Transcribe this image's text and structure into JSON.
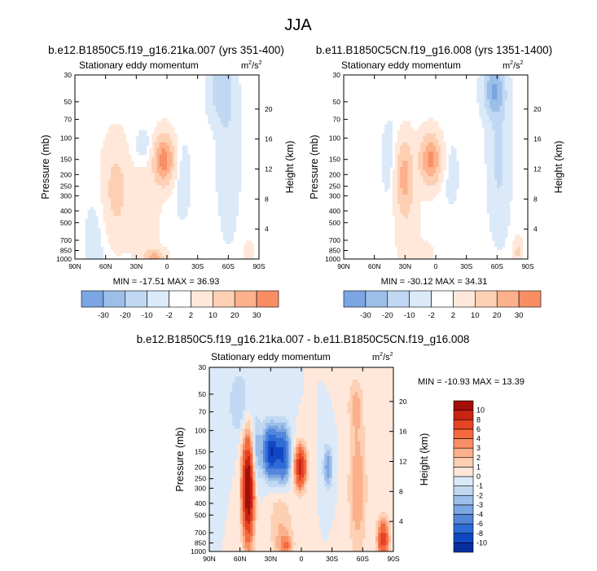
{
  "title": "JJA",
  "panels": [
    {
      "title": "b.e12.B1850C5.f19_g16.21ka.007 (yrs 351-400)",
      "subtitle_left": "Stationary eddy momentum",
      "units_base": "m",
      "units_exp1": "2",
      "units_mid": "/s",
      "units_exp2": "2",
      "stats": "MIN = -17.51  MAX = 36.93"
    },
    {
      "title": "b.e11.B1850C5CN.f19_g16.008 (yrs 1351-1400)",
      "subtitle_left": "Stationary eddy momentum",
      "units_base": "m",
      "units_exp1": "2",
      "units_mid": "/s",
      "units_exp2": "2",
      "stats": "MIN = -30.12  MAX = 34.31"
    },
    {
      "title": "b.e12.B1850C5.f19_g16.21ka.007 - b.e11.B1850C5CN.f19_g16.008",
      "subtitle_left": "Stationary eddy momentum",
      "units_base": "m",
      "units_exp1": "2",
      "units_mid": "/s",
      "units_exp2": "2",
      "stats": "MIN = -10.93  MAX = 13.39"
    }
  ],
  "colors": {
    "pos": [
      "#ffe8da",
      "#fdd0b3",
      "#fcb08b",
      "#f98e64",
      "#f4693f",
      "#e44324",
      "#c92312",
      "#a30d0a",
      "#7d0506"
    ],
    "neg": [
      "#dbe9f8",
      "#c0d8f2",
      "#9cbfea",
      "#7ba5e3",
      "#5487dc",
      "#2e6bd6",
      "#1048c4",
      "#0a2ea0",
      "#051a78"
    ]
  },
  "chart_data": [
    {
      "type": "heatmap",
      "title": "b.e12.B1850C5.f19_g16.21ka.007 (yrs 351-400)",
      "variable": "Stationary eddy momentum",
      "units": "m2/s2",
      "xlabel": "",
      "ylabel": "Pressure (mb)",
      "ylabel_right": "Height (km)",
      "x_ticks": [
        "90N",
        "60N",
        "30N",
        "0",
        "30S",
        "60S",
        "90S"
      ],
      "x_range": [
        90,
        -90
      ],
      "y_ticks": [
        "30",
        "50",
        "70",
        "100",
        "150",
        "200",
        "250",
        "300",
        "400",
        "500",
        "700",
        "850",
        "1000"
      ],
      "y_range_mb": [
        30,
        1000
      ],
      "y_right_ticks": [
        "4",
        "8",
        "12",
        "16",
        "20"
      ],
      "levels": [
        -30,
        -20,
        -10,
        -2,
        2,
        10,
        20,
        30
      ],
      "level_labels": [
        "-30",
        "-20",
        "-10",
        "-2",
        "2",
        "10",
        "20",
        "30"
      ],
      "min": -17.51,
      "max": 36.93,
      "features": [
        {
          "lat": 3,
          "p": 150,
          "value": 36,
          "lat_width": 7,
          "logp_width": 0.14
        },
        {
          "lat": 50,
          "p": 270,
          "value": 14,
          "lat_width": 9,
          "logp_width": 0.28
        },
        {
          "lat": 22,
          "p": 400,
          "value": 8,
          "lat_width": 9,
          "logp_width": 0.3
        },
        {
          "lat": 12,
          "p": 980,
          "value": 22,
          "lat_width": 7,
          "logp_width": 0.05
        },
        {
          "lat": -53,
          "p": 40,
          "value": -17,
          "lat_width": 8,
          "logp_width": 0.18
        },
        {
          "lat": -60,
          "p": 150,
          "value": -9,
          "lat_width": 7,
          "logp_width": 0.4
        },
        {
          "lat": 22,
          "p": 120,
          "value": -6,
          "lat_width": 8,
          "logp_width": 0.12
        },
        {
          "lat": -15,
          "p": 220,
          "value": -5,
          "lat_width": 6,
          "logp_width": 0.25
        },
        {
          "lat": 70,
          "p": 700,
          "value": -4,
          "lat_width": 9,
          "logp_width": 0.3
        },
        {
          "lat": -80,
          "p": 900,
          "value": 6,
          "lat_width": 4,
          "logp_width": 0.08
        }
      ]
    },
    {
      "type": "heatmap",
      "title": "b.e11.B1850C5CN.f19_g16.008 (yrs 1351-1400)",
      "variable": "Stationary eddy momentum",
      "units": "m2/s2",
      "xlabel": "",
      "ylabel": "Pressure (mb)",
      "ylabel_right": "Height (km)",
      "x_ticks": [
        "90N",
        "60N",
        "30N",
        "0",
        "30S",
        "60S",
        "90S"
      ],
      "x_range": [
        90,
        -90
      ],
      "y_ticks": [
        "30",
        "50",
        "70",
        "100",
        "150",
        "200",
        "250",
        "300",
        "400",
        "500",
        "700",
        "850",
        "1000"
      ],
      "y_range_mb": [
        30,
        1000
      ],
      "y_right_ticks": [
        "4",
        "8",
        "12",
        "16",
        "20"
      ],
      "levels": [
        -30,
        -20,
        -10,
        -2,
        2,
        10,
        20,
        30
      ],
      "level_labels": [
        "-30",
        "-20",
        "-10",
        "-2",
        "2",
        "10",
        "20",
        "30"
      ],
      "min": -30.12,
      "max": 34.31,
      "features": [
        {
          "lat": 5,
          "p": 150,
          "value": 34,
          "lat_width": 7,
          "logp_width": 0.14
        },
        {
          "lat": 31,
          "p": 200,
          "value": 22,
          "lat_width": 6,
          "logp_width": 0.2
        },
        {
          "lat": 28,
          "p": 450,
          "value": 6,
          "lat_width": 8,
          "logp_width": 0.35
        },
        {
          "lat": -57,
          "p": 40,
          "value": -30,
          "lat_width": 7,
          "logp_width": 0.15
        },
        {
          "lat": -62,
          "p": 150,
          "value": -12,
          "lat_width": 7,
          "logp_width": 0.4
        },
        {
          "lat": 45,
          "p": 150,
          "value": -5,
          "lat_width": 6,
          "logp_width": 0.25
        },
        {
          "lat": -15,
          "p": 200,
          "value": -4,
          "lat_width": 6,
          "logp_width": 0.22
        },
        {
          "lat": -80,
          "p": 880,
          "value": 12,
          "lat_width": 3,
          "logp_width": 0.08
        },
        {
          "lat": 10,
          "p": 920,
          "value": 5,
          "lat_width": 6,
          "logp_width": 0.08
        }
      ]
    },
    {
      "type": "heatmap",
      "title": "b.e12.B1850C5.f19_g16.21ka.007 - b.e11.B1850C5CN.f19_g16.008",
      "variable": "Stationary eddy momentum",
      "units": "m2/s2",
      "xlabel": "",
      "ylabel": "Pressure (mb)",
      "ylabel_right": "Height (km)",
      "x_ticks": [
        "90N",
        "60N",
        "30N",
        "0",
        "30S",
        "60S",
        "90S"
      ],
      "x_range": [
        90,
        -90
      ],
      "y_ticks": [
        "30",
        "50",
        "70",
        "100",
        "150",
        "200",
        "250",
        "300",
        "400",
        "500",
        "700",
        "850",
        "1000"
      ],
      "y_range_mb": [
        30,
        1000
      ],
      "y_right_ticks": [
        "4",
        "8",
        "12",
        "16",
        "20"
      ],
      "levels": [
        -10,
        -8,
        -6,
        -4,
        -3,
        -2,
        -1,
        0,
        1,
        2,
        3,
        4,
        6,
        8,
        10
      ],
      "level_labels": [
        "-10",
        "-8",
        "-6",
        "-4",
        "-3",
        "-2",
        "-1",
        "0",
        "1",
        "2",
        "3",
        "4",
        "6",
        "8",
        "10"
      ],
      "min": -10.93,
      "max": 13.39,
      "features": [
        {
          "lat": 52,
          "p": 300,
          "value": 13,
          "lat_width": 4,
          "logp_width": 0.3
        },
        {
          "lat": 45,
          "p": 150,
          "value": -3,
          "lat_width": 4,
          "logp_width": 0.2
        },
        {
          "lat": 30,
          "p": 150,
          "value": -10,
          "lat_width": 5,
          "logp_width": 0.14
        },
        {
          "lat": 18,
          "p": 160,
          "value": -8,
          "lat_width": 5,
          "logp_width": 0.16
        },
        {
          "lat": 1,
          "p": 200,
          "value": 9,
          "lat_width": 4,
          "logp_width": 0.12
        },
        {
          "lat": -26,
          "p": 200,
          "value": -4,
          "lat_width": 3,
          "logp_width": 0.12
        },
        {
          "lat": 60,
          "p": 60,
          "value": -2,
          "lat_width": 8,
          "logp_width": 0.2
        },
        {
          "lat": -55,
          "p": 300,
          "value": 3,
          "lat_width": 6,
          "logp_width": 0.4
        },
        {
          "lat": -53,
          "p": 60,
          "value": 2,
          "lat_width": 5,
          "logp_width": 0.15
        },
        {
          "lat": -80,
          "p": 800,
          "value": 7,
          "lat_width": 4,
          "logp_width": 0.12
        },
        {
          "lat": 15,
          "p": 900,
          "value": 3,
          "lat_width": 5,
          "logp_width": 0.07
        },
        {
          "lat": 20,
          "p": 600,
          "value": 2,
          "lat_width": 8,
          "logp_width": 0.25
        }
      ]
    }
  ]
}
